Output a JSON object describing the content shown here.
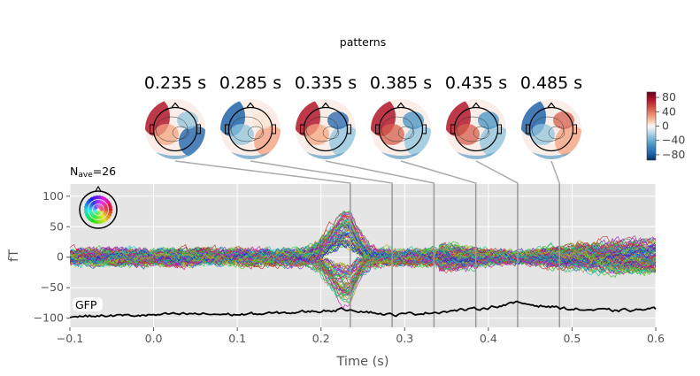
{
  "figure": {
    "title": "patterns",
    "nave_label": "N",
    "nave_sub": "ave",
    "nave_value": "=26",
    "gfp_label": "GFP"
  },
  "topomaps": [
    {
      "time": 0.235,
      "label": "0.235 s"
    },
    {
      "time": 0.285,
      "label": "0.285 s"
    },
    {
      "time": 0.335,
      "label": "0.335 s"
    },
    {
      "time": 0.385,
      "label": "0.385 s"
    },
    {
      "time": 0.435,
      "label": "0.435 s"
    },
    {
      "time": 0.485,
      "label": "0.485 s"
    }
  ],
  "colorbar": {
    "ticks": [
      "80",
      "40",
      "0",
      "−40",
      "−80"
    ],
    "tick_values": [
      80,
      40,
      0,
      -40,
      -80
    ],
    "range": [
      -95,
      95
    ],
    "colormap": "RdBu_r"
  },
  "chart_data": {
    "type": "line",
    "xlabel": "Time (s)",
    "ylabel": "fT",
    "xlim": [
      -0.1,
      0.6
    ],
    "ylim": [
      -115,
      120
    ],
    "xticks": [
      "−0.1",
      "0.0",
      "0.1",
      "0.2",
      "0.3",
      "0.4",
      "0.5",
      "0.6"
    ],
    "xtick_values": [
      -0.1,
      0.0,
      0.1,
      0.2,
      0.3,
      0.4,
      0.5,
      0.6
    ],
    "yticks": [
      "100",
      "50",
      "0",
      "−50",
      "−100"
    ],
    "ytick_values": [
      100,
      50,
      0,
      -50,
      -100
    ],
    "grid": true,
    "background": "#e5e5e5",
    "n_channels": 102,
    "time_markers": [
      0.235,
      0.285,
      0.335,
      0.385,
      0.435,
      0.485
    ],
    "gfp": {
      "x": [
        -0.1,
        -0.05,
        0.0,
        0.05,
        0.1,
        0.15,
        0.2,
        0.235,
        0.285,
        0.335,
        0.385,
        0.435,
        0.5,
        0.55,
        0.6
      ],
      "y": [
        -97,
        -96,
        -95,
        -93,
        -94,
        -92,
        -88,
        -85,
        -95,
        -90,
        -85,
        -75,
        -85,
        -88,
        -85
      ]
    },
    "envelope": {
      "x": [
        -0.1,
        -0.05,
        0.0,
        0.05,
        0.1,
        0.15,
        0.2,
        0.235,
        0.26,
        0.3,
        0.35,
        0.4,
        0.45,
        0.5,
        0.55,
        0.6
      ],
      "y": [
        28,
        25,
        25,
        28,
        28,
        30,
        60,
        90,
        40,
        45,
        45,
        55,
        55,
        50,
        40,
        40
      ]
    }
  },
  "colors": {
    "marker_line": "#999999",
    "gfp": "#000000",
    "axes_bg": "#e5e5e5",
    "grid": "#ffffff"
  }
}
